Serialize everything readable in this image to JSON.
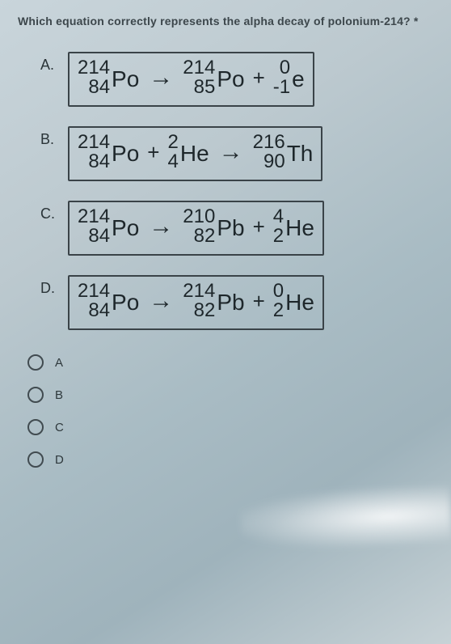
{
  "colors": {
    "text": "#2a3438",
    "question": "#3d474c",
    "box_border": "#3a4348",
    "radio_border": "#414b50",
    "bg_top": "#c9d5db",
    "bg_bottom": "#9fb3bc"
  },
  "typography": {
    "question_fontsize": 14,
    "label_fontsize": 18,
    "nuclide_num_fontsize": 24,
    "symbol_fontsize": 28,
    "operator_fontsize": 26
  },
  "question": "Which equation correctly represents the alpha decay of polonium-214? *",
  "choices": [
    {
      "label": "A.",
      "equation": {
        "terms": [
          {
            "type": "nuclide",
            "mass": "214",
            "atomic": "84",
            "symbol": "Po"
          },
          {
            "type": "arrow"
          },
          {
            "type": "nuclide",
            "mass": "214",
            "atomic": "85",
            "symbol": "Po"
          },
          {
            "type": "op",
            "text": "+"
          },
          {
            "type": "nuclide",
            "mass": "0",
            "atomic": "-1",
            "symbol": "e"
          }
        ]
      }
    },
    {
      "label": "B.",
      "equation": {
        "terms": [
          {
            "type": "nuclide",
            "mass": "214",
            "atomic": "84",
            "symbol": "Po"
          },
          {
            "type": "op",
            "text": "+"
          },
          {
            "type": "nuclide",
            "mass": "2",
            "atomic": "4",
            "symbol": "He"
          },
          {
            "type": "arrow"
          },
          {
            "type": "nuclide",
            "mass": "216",
            "atomic": "90",
            "symbol": "Th"
          }
        ]
      }
    },
    {
      "label": "C.",
      "equation": {
        "terms": [
          {
            "type": "nuclide",
            "mass": "214",
            "atomic": "84",
            "symbol": "Po"
          },
          {
            "type": "arrow"
          },
          {
            "type": "nuclide",
            "mass": "210",
            "atomic": "82",
            "symbol": "Pb"
          },
          {
            "type": "op",
            "text": "+"
          },
          {
            "type": "nuclide",
            "mass": "4",
            "atomic": "2",
            "symbol": "He"
          }
        ]
      }
    },
    {
      "label": "D.",
      "equation": {
        "terms": [
          {
            "type": "nuclide",
            "mass": "214",
            "atomic": "84",
            "symbol": "Po"
          },
          {
            "type": "arrow"
          },
          {
            "type": "nuclide",
            "mass": "214",
            "atomic": "82",
            "symbol": "Pb"
          },
          {
            "type": "op",
            "text": "+"
          },
          {
            "type": "nuclide",
            "mass": "0",
            "atomic": "2",
            "symbol": "He"
          }
        ]
      }
    }
  ],
  "answers": [
    {
      "label": "A"
    },
    {
      "label": "B"
    },
    {
      "label": "C"
    },
    {
      "label": "D"
    }
  ],
  "arrow_glyph": "→"
}
